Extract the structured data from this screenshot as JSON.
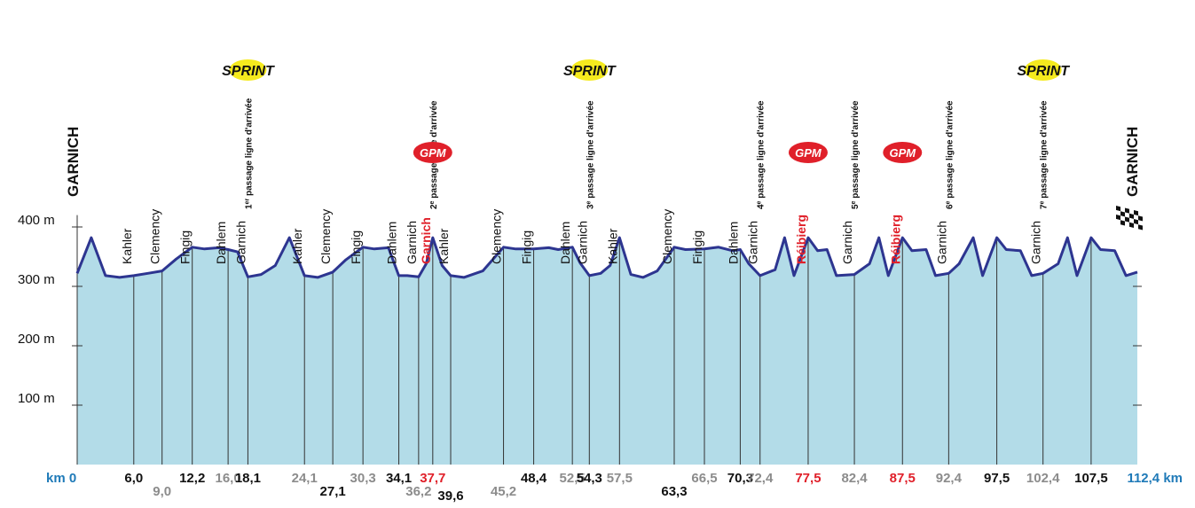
{
  "chart_data": {
    "type": "area",
    "xlabel": "",
    "ylabel": "",
    "xlim": [
      0,
      112.4
    ],
    "ylim": [
      0,
      420
    ],
    "y_ticks": [
      {
        "value": 100,
        "label": "100 m"
      },
      {
        "value": 200,
        "label": "200 m"
      },
      {
        "value": 300,
        "label": "300 m"
      },
      {
        "value": 400,
        "label": "400 m"
      }
    ],
    "colors": {
      "fill": "#b3dce8",
      "line": "#2d3590",
      "km_end": "#1f7ab8",
      "gpm": "#e0202a",
      "grey_km": "#8c8c8c",
      "sprint_badge": "#f5ea1e"
    },
    "elevation_profile": [
      [
        0,
        322
      ],
      [
        1.5,
        382
      ],
      [
        3,
        318
      ],
      [
        4.5,
        315
      ],
      [
        6,
        318
      ],
      [
        7.5,
        322
      ],
      [
        9,
        326
      ],
      [
        10.5,
        346
      ],
      [
        12.2,
        366
      ],
      [
        13.5,
        363
      ],
      [
        15,
        365
      ],
      [
        16,
        362
      ],
      [
        17,
        358
      ],
      [
        18.1,
        316
      ],
      [
        19.5,
        320
      ],
      [
        21,
        335
      ],
      [
        22.5,
        382
      ],
      [
        24.1,
        318
      ],
      [
        25.5,
        315
      ],
      [
        27.1,
        324
      ],
      [
        28.5,
        345
      ],
      [
        30.3,
        366
      ],
      [
        31.5,
        363
      ],
      [
        33,
        365
      ],
      [
        34.1,
        318
      ],
      [
        35,
        318
      ],
      [
        36.2,
        316
      ],
      [
        37,
        338
      ],
      [
        37.7,
        382
      ],
      [
        38.7,
        335
      ],
      [
        39.6,
        318
      ],
      [
        41,
        315
      ],
      [
        43,
        326
      ],
      [
        45.2,
        366
      ],
      [
        46.5,
        363
      ],
      [
        48.4,
        363
      ],
      [
        50,
        365
      ],
      [
        51,
        362
      ],
      [
        52.5,
        366
      ],
      [
        53.3,
        340
      ],
      [
        54.3,
        318
      ],
      [
        55.5,
        322
      ],
      [
        56.5,
        335
      ],
      [
        57.5,
        382
      ],
      [
        58.7,
        320
      ],
      [
        60,
        315
      ],
      [
        61.5,
        326
      ],
      [
        63.3,
        366
      ],
      [
        64.5,
        362
      ],
      [
        66.5,
        363
      ],
      [
        68,
        366
      ],
      [
        69.5,
        360
      ],
      [
        70.3,
        362
      ],
      [
        71.2,
        338
      ],
      [
        72.4,
        318
      ],
      [
        74,
        328
      ],
      [
        75,
        382
      ],
      [
        76,
        318
      ],
      [
        77.5,
        382
      ],
      [
        78.5,
        360
      ],
      [
        79.5,
        362
      ],
      [
        80.5,
        318
      ],
      [
        82.4,
        320
      ],
      [
        84,
        338
      ],
      [
        85,
        382
      ],
      [
        86,
        318
      ],
      [
        87.5,
        382
      ],
      [
        88.5,
        360
      ],
      [
        90,
        362
      ],
      [
        91,
        318
      ],
      [
        92.4,
        322
      ],
      [
        93.5,
        338
      ],
      [
        95,
        382
      ],
      [
        96,
        318
      ],
      [
        97.5,
        382
      ],
      [
        98.5,
        362
      ],
      [
        100,
        360
      ],
      [
        101.2,
        318
      ],
      [
        102.4,
        322
      ],
      [
        104,
        338
      ],
      [
        105,
        382
      ],
      [
        106,
        318
      ],
      [
        107.5,
        382
      ],
      [
        108.5,
        362
      ],
      [
        110,
        360
      ],
      [
        111.2,
        318
      ],
      [
        112.4,
        324
      ]
    ],
    "km_markers": [
      {
        "km": 0,
        "label": "km 0",
        "color": "blue",
        "row": "upper",
        "line": false
      },
      {
        "km": 6.0,
        "label": "6,0",
        "color": "black",
        "row": "upper",
        "place": "Kahler"
      },
      {
        "km": 9.0,
        "label": "9,0",
        "color": "grey",
        "row": "lower",
        "place": "Clemency"
      },
      {
        "km": 12.2,
        "label": "12,2",
        "color": "black",
        "row": "upper",
        "place": "Fingig"
      },
      {
        "km": 16.0,
        "label": "16,0",
        "color": "grey",
        "row": "upper",
        "place": "Dahlem"
      },
      {
        "km": 18.1,
        "label": "18,1",
        "color": "black",
        "row": "upper",
        "place": "Garnich"
      },
      {
        "km": 24.1,
        "label": "24,1",
        "color": "grey",
        "row": "upper",
        "place": "Kahler"
      },
      {
        "km": 27.1,
        "label": "27,1",
        "color": "black",
        "row": "lower",
        "place": "Clemency"
      },
      {
        "km": 30.3,
        "label": "30,3",
        "color": "grey",
        "row": "upper",
        "place": "Fingig"
      },
      {
        "km": 34.1,
        "label": "34,1",
        "color": "black",
        "row": "upper",
        "place": "Dahlem"
      },
      {
        "km": 36.2,
        "label": "36,2",
        "color": "grey",
        "row": "lower",
        "place": "Garnich"
      },
      {
        "km": 37.7,
        "label": "37,7",
        "color": "red",
        "row": "upper",
        "place": "Garnich",
        "place_color": "red"
      },
      {
        "km": 39.6,
        "label": "39,6",
        "color": "black",
        "row": "bottom",
        "place": "Kahler"
      },
      {
        "km": 45.2,
        "label": "45,2",
        "color": "grey",
        "row": "lower",
        "place": "Clemency"
      },
      {
        "km": 48.4,
        "label": "48,4",
        "color": "black",
        "row": "upper",
        "place": "Fingig"
      },
      {
        "km": 52.5,
        "label": "52,5",
        "color": "grey",
        "row": "upper",
        "place": "Dahlem"
      },
      {
        "km": 54.3,
        "label": "54,3",
        "color": "black",
        "row": "upper",
        "place": "Garnich"
      },
      {
        "km": 57.5,
        "label": "57,5",
        "color": "grey",
        "row": "upper",
        "place": "Kahler"
      },
      {
        "km": 63.3,
        "label": "63,3",
        "color": "black",
        "row": "lower",
        "place": "Clemency"
      },
      {
        "km": 66.5,
        "label": "66,5",
        "color": "grey",
        "row": "upper",
        "place": "Fingig"
      },
      {
        "km": 70.3,
        "label": "70,3",
        "color": "black",
        "row": "upper",
        "place": "Dahlem"
      },
      {
        "km": 72.4,
        "label": "72,4",
        "color": "grey",
        "row": "upper",
        "place": "Garnich"
      },
      {
        "km": 77.5,
        "label": "77,5",
        "color": "red",
        "row": "upper",
        "place": "Réibierg",
        "place_color": "red"
      },
      {
        "km": 82.4,
        "label": "82,4",
        "color": "grey",
        "row": "upper",
        "place": "Garnich"
      },
      {
        "km": 87.5,
        "label": "87,5",
        "color": "red",
        "row": "upper",
        "place": "Réibierg",
        "place_color": "red"
      },
      {
        "km": 92.4,
        "label": "92,4",
        "color": "grey",
        "row": "upper",
        "place": "Garnich"
      },
      {
        "km": 97.5,
        "label": "97,5",
        "color": "black",
        "row": "upper"
      },
      {
        "km": 102.4,
        "label": "102,4",
        "color": "grey",
        "row": "upper",
        "place": "Garnich"
      },
      {
        "km": 107.5,
        "label": "107,5",
        "color": "black",
        "row": "upper"
      },
      {
        "km": 112.4,
        "label": "112,4 km",
        "color": "blue",
        "row": "upper",
        "line": false
      }
    ],
    "passages": [
      {
        "km": 18.1,
        "ordinal": "1",
        "sup": "er",
        "text": " passage ligne d'arrivée"
      },
      {
        "km": 37.7,
        "ordinal": "2",
        "sup": "e",
        "text": " passage ligne d'arrivée"
      },
      {
        "km": 54.3,
        "ordinal": "3",
        "sup": "e",
        "text": " passage ligne d'arrivée"
      },
      {
        "km": 72.4,
        "ordinal": "4",
        "sup": "e",
        "text": " passage ligne d'arrivée"
      },
      {
        "km": 82.4,
        "ordinal": "5",
        "sup": "e",
        "text": " passage ligne d'arrivée"
      },
      {
        "km": 92.4,
        "ordinal": "6",
        "sup": "e",
        "text": " passage ligne d'arrivée"
      },
      {
        "km": 102.4,
        "ordinal": "7",
        "sup": "e",
        "text": " passage ligne d'arrivée"
      }
    ],
    "sprints": [
      {
        "km": 18.1,
        "label": "SPRINT"
      },
      {
        "km": 54.3,
        "label": "SPRINT"
      },
      {
        "km": 102.4,
        "label": "SPRINT"
      }
    ],
    "gpm": [
      {
        "km": 37.7,
        "label": "GPM"
      },
      {
        "km": 77.5,
        "label": "GPM"
      },
      {
        "km": 87.5,
        "label": "GPM"
      }
    ],
    "start_label": "GARNICH",
    "finish_label": "GARNICH",
    "finish_icon": "checkered-flag-icon"
  }
}
